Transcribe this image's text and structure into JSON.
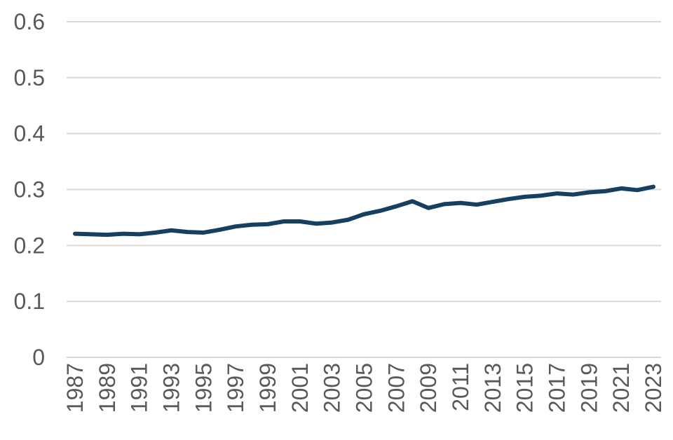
{
  "chart_data": {
    "type": "line",
    "title": "",
    "xlabel": "",
    "ylabel": "",
    "x": [
      1987,
      1988,
      1989,
      1990,
      1991,
      1992,
      1993,
      1994,
      1995,
      1996,
      1997,
      1998,
      1999,
      2000,
      2001,
      2002,
      2003,
      2004,
      2005,
      2006,
      2007,
      2008,
      2009,
      2010,
      2011,
      2012,
      2013,
      2014,
      2015,
      2016,
      2017,
      2018,
      2019,
      2020,
      2021,
      2022,
      2023
    ],
    "x_tick_labels": [
      "1987",
      "1989",
      "1991",
      "1993",
      "1995",
      "1997",
      "1999",
      "2001",
      "2003",
      "2005",
      "2007",
      "2009",
      "2011",
      "2013",
      "2015",
      "2017",
      "2019",
      "2021",
      "2023"
    ],
    "y_ticks": [
      0,
      0.1,
      0.2,
      0.3,
      0.4,
      0.5,
      0.6
    ],
    "y_tick_labels": [
      "0",
      "0.1",
      "0.2",
      "0.3",
      "0.4",
      "0.5",
      "0.6"
    ],
    "ylim": [
      0,
      0.6
    ],
    "grid": true,
    "legend": "none",
    "series": [
      {
        "color": "#173f5f",
        "values": [
          0.221,
          0.22,
          0.219,
          0.221,
          0.22,
          0.223,
          0.227,
          0.224,
          0.223,
          0.228,
          0.234,
          0.237,
          0.238,
          0.243,
          0.243,
          0.239,
          0.241,
          0.246,
          0.256,
          0.262,
          0.27,
          0.279,
          0.267,
          0.274,
          0.276,
          0.273,
          0.278,
          0.283,
          0.287,
          0.289,
          0.293,
          0.291,
          0.295,
          0.297,
          0.302,
          0.299,
          0.305
        ]
      }
    ]
  }
}
